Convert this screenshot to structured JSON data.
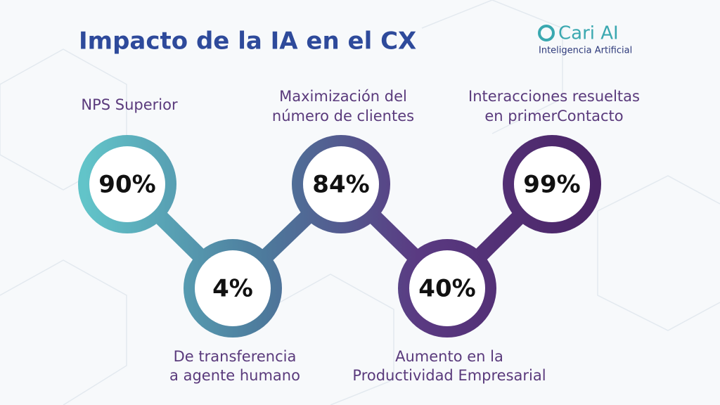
{
  "header": {
    "title": "Impacto de la IA en el CX",
    "logo": {
      "name": "Cari AI",
      "tagline": "Inteligencia Artificial"
    }
  },
  "nodes": [
    {
      "value": "90%",
      "caption": [
        "NPS Superior"
      ]
    },
    {
      "value": "4%",
      "caption": [
        "De transferencia",
        "a agente humano"
      ]
    },
    {
      "value": "84%",
      "caption": [
        "Maximización del",
        "número de clientes"
      ]
    },
    {
      "value": "40%",
      "caption": [
        "Aumento en la",
        "Productividad Empresarial"
      ]
    },
    {
      "value": "99%",
      "caption": [
        "Interacciones resueltas",
        "en primerContacto"
      ]
    }
  ]
}
